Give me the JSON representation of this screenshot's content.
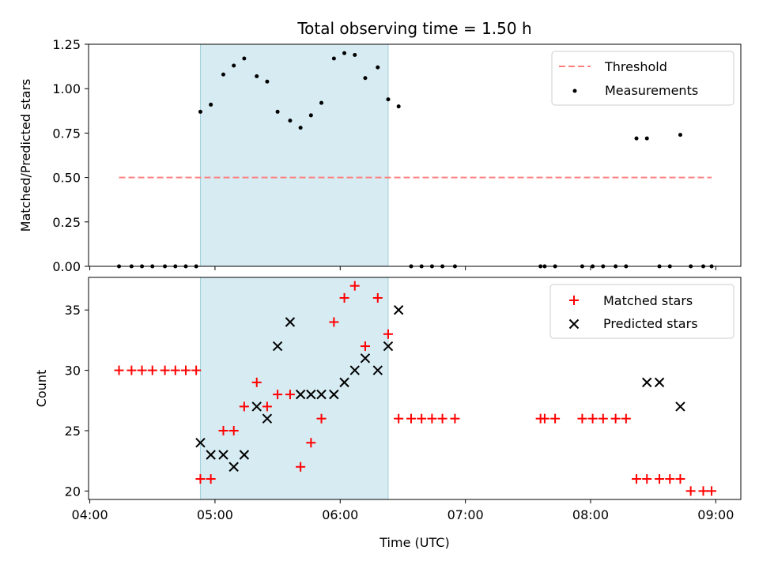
{
  "chart_data": [
    {
      "type": "scatter",
      "title": "Total observing time = 1.50 h",
      "xlabel": "",
      "ylabel": "Matched/Predicted stars",
      "ylim": [
        0,
        1.25
      ],
      "yticks": [
        "0.00",
        "0.25",
        "0.50",
        "0.75",
        "1.00",
        "1.25"
      ],
      "shaded_span": [
        "04:53",
        "06:23"
      ],
      "legend_position": "top-right",
      "colors": {
        "threshold": "#ff7f7f",
        "measurements": "#000000",
        "shade": "#add8e6"
      },
      "series": [
        {
          "name": "Threshold",
          "style": "dashed-line",
          "x": [
            "04:14",
            "08:58"
          ],
          "y": [
            0.5,
            0.5
          ]
        },
        {
          "name": "Measurements",
          "style": "dots",
          "x": [
            "04:14",
            "04:20",
            "04:25",
            "04:30",
            "04:36",
            "04:41",
            "04:46",
            "04:51",
            "04:53",
            "04:58",
            "05:04",
            "05:09",
            "05:14",
            "05:20",
            "05:25",
            "05:30",
            "05:36",
            "05:41",
            "05:46",
            "05:51",
            "05:57",
            "06:02",
            "06:07",
            "06:12",
            "06:18",
            "06:23",
            "06:28",
            "06:34",
            "06:39",
            "06:44",
            "06:49",
            "06:55",
            "07:36",
            "07:38",
            "07:43",
            "07:56",
            "08:01",
            "08:06",
            "08:12",
            "08:17",
            "08:22",
            "08:27",
            "08:33",
            "08:38",
            "08:43",
            "08:48",
            "08:54",
            "08:58"
          ],
          "y": [
            0,
            0,
            0,
            0,
            0,
            0,
            0,
            0,
            0.87,
            0.91,
            1.08,
            1.13,
            1.17,
            1.07,
            1.04,
            0.87,
            0.82,
            0.78,
            0.85,
            0.92,
            1.17,
            1.2,
            1.19,
            1.06,
            1.12,
            0.94,
            0.9,
            0,
            0,
            0,
            0,
            0,
            0,
            0,
            0,
            0,
            0,
            0,
            0,
            0,
            0.72,
            0.72,
            0,
            0,
            0.74,
            0,
            0,
            0
          ]
        }
      ]
    },
    {
      "type": "scatter",
      "title": "",
      "xlabel": "Time (UTC)",
      "ylabel": "Count",
      "ylim": [
        19.3,
        37.7
      ],
      "yticks": [
        "20",
        "25",
        "30",
        "35"
      ],
      "xticks": [
        "04:00",
        "05:00",
        "06:00",
        "07:00",
        "08:00",
        "09:00"
      ],
      "shaded_span": [
        "04:53",
        "06:23"
      ],
      "legend_position": "top-right",
      "colors": {
        "matched": "#ff0000",
        "predicted": "#000000"
      },
      "series": [
        {
          "name": "Matched stars",
          "marker": "plus",
          "x": [
            "04:14",
            "04:20",
            "04:25",
            "04:30",
            "04:36",
            "04:41",
            "04:46",
            "04:51",
            "04:53",
            "04:58",
            "05:04",
            "05:09",
            "05:14",
            "05:20",
            "05:25",
            "05:30",
            "05:36",
            "05:41",
            "05:46",
            "05:51",
            "05:57",
            "06:02",
            "06:07",
            "06:12",
            "06:18",
            "06:23",
            "06:28",
            "06:34",
            "06:39",
            "06:44",
            "06:49",
            "06:55",
            "07:36",
            "07:38",
            "07:43",
            "07:56",
            "08:01",
            "08:06",
            "08:12",
            "08:17",
            "08:22",
            "08:27",
            "08:33",
            "08:38",
            "08:43",
            "08:48",
            "08:54",
            "08:58"
          ],
          "y": [
            30,
            30,
            30,
            30,
            30,
            30,
            30,
            30,
            21,
            21,
            25,
            25,
            27,
            29,
            27,
            28,
            28,
            22,
            24,
            26,
            34,
            36,
            37,
            32,
            36,
            33,
            26,
            26,
            26,
            26,
            26,
            26,
            26,
            26,
            26,
            26,
            26,
            26,
            26,
            26,
            21,
            21,
            21,
            21,
            21,
            20,
            20,
            20
          ]
        },
        {
          "name": "Predicted stars",
          "marker": "x",
          "x": [
            "04:53",
            "04:58",
            "05:04",
            "05:09",
            "05:14",
            "05:20",
            "05:25",
            "05:30",
            "05:36",
            "05:41",
            "05:46",
            "05:51",
            "05:57",
            "06:02",
            "06:07",
            "06:12",
            "06:18",
            "06:23",
            "06:28",
            "08:27",
            "08:33",
            "08:43"
          ],
          "y": [
            24,
            23,
            23,
            22,
            23,
            27,
            26,
            32,
            34,
            28,
            28,
            28,
            28,
            29,
            30,
            31,
            30,
            32,
            35,
            29,
            29,
            27
          ]
        }
      ]
    }
  ]
}
